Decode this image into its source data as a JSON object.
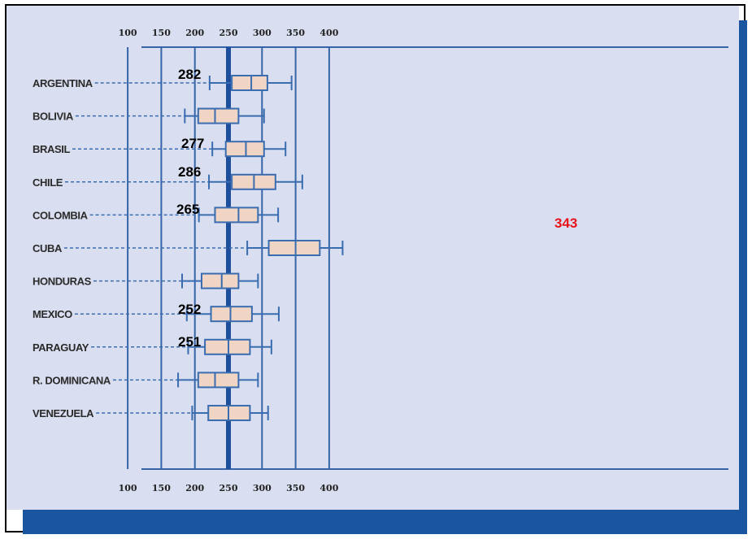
{
  "colors": {
    "plot_background": "#d9dff0",
    "grid_line": "#3565a8",
    "median_line": "#1e4f9c",
    "box_fill": "#f0d5c4",
    "whisker": "#3a6cb0",
    "shadow": "#1a56a0",
    "annotation_default": "#000000",
    "annotation_highlight": "#e8121a"
  },
  "chart_data": {
    "type": "box",
    "title": "",
    "xlabel": "",
    "ylabel": "",
    "xlim": [
      50,
      430
    ],
    "x_ticks": [
      100,
      150,
      200,
      250,
      300,
      350,
      400
    ],
    "x_tick_labels_top": [
      "100",
      "150",
      "200",
      "250",
      "300",
      "350",
      "400"
    ],
    "x_tick_labels_bottom": [
      "100",
      "150",
      "200",
      "250",
      "300",
      "350",
      "400"
    ],
    "reference_line": 250,
    "grid": true,
    "categories": [
      "ARGENTINA",
      "BOLIVIA",
      "BRASIL",
      "CHILE",
      "COLOMBIA",
      "CUBA",
      "HONDURAS",
      "MEXICO",
      "PARAGUAY",
      "R. DOMINICANA",
      "VENEZUELA"
    ],
    "boxes": [
      {
        "label": "ARGENTINA",
        "whisker_low": 222,
        "q1": 255,
        "median": 284,
        "q3": 308,
        "whisker_high": 344
      },
      {
        "label": "BOLIVIA",
        "whisker_low": 185,
        "q1": 205,
        "median": 230,
        "q3": 265,
        "whisker_high": 303
      },
      {
        "label": "BRASIL",
        "whisker_low": 226,
        "q1": 246,
        "median": 276,
        "q3": 303,
        "whisker_high": 335
      },
      {
        "label": "CHILE",
        "whisker_low": 221,
        "q1": 255,
        "median": 288,
        "q3": 320,
        "whisker_high": 360
      },
      {
        "label": "COLOMBIA",
        "whisker_low": 206,
        "q1": 230,
        "median": 265,
        "q3": 294,
        "whisker_high": 324
      },
      {
        "label": "CUBA",
        "whisker_low": 278,
        "q1": 310,
        "median": 350,
        "q3": 386,
        "whisker_high": 420
      },
      {
        "label": "HONDURAS",
        "whisker_low": 181,
        "q1": 210,
        "median": 240,
        "q3": 265,
        "whisker_high": 294
      },
      {
        "label": "MEXICO",
        "whisker_low": 188,
        "q1": 224,
        "median": 253,
        "q3": 285,
        "whisker_high": 325
      },
      {
        "label": "PARAGUAY",
        "whisker_low": 190,
        "q1": 215,
        "median": 250,
        "q3": 282,
        "whisker_high": 314
      },
      {
        "label": "R. DOMINICANA",
        "whisker_low": 175,
        "q1": 205,
        "median": 230,
        "q3": 265,
        "whisker_high": 294
      },
      {
        "label": "VENEZUELA",
        "whisker_low": 196,
        "q1": 220,
        "median": 250,
        "q3": 282,
        "whisker_high": 309
      }
    ],
    "annotations": [
      {
        "text": "282",
        "row": "ARGENTINA",
        "highlight": false
      },
      {
        "text": "277",
        "row": "BRASIL",
        "highlight": false
      },
      {
        "text": "286",
        "row": "CHILE",
        "highlight": false
      },
      {
        "text": "265",
        "row": "COLOMBIA",
        "highlight": false
      },
      {
        "text": "343",
        "row": "CUBA",
        "highlight": true
      },
      {
        "text": "252",
        "row": "MEXICO",
        "highlight": false
      },
      {
        "text": "251",
        "row": "PARAGUAY",
        "highlight": false
      }
    ]
  }
}
